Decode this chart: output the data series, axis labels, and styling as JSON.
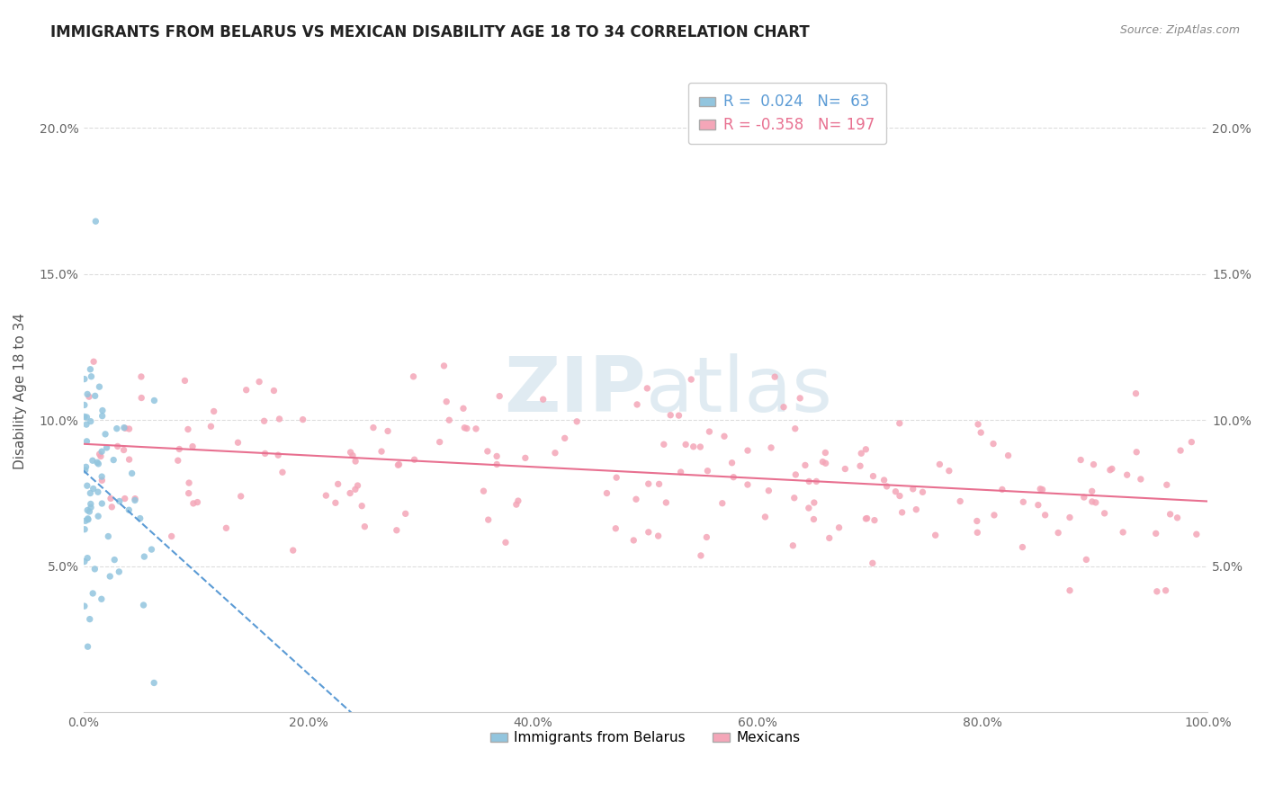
{
  "title": "IMMIGRANTS FROM BELARUS VS MEXICAN DISABILITY AGE 18 TO 34 CORRELATION CHART",
  "source": "Source: ZipAtlas.com",
  "xlabel": "",
  "ylabel": "Disability Age 18 to 34",
  "xlim": [
    0.0,
    1.0
  ],
  "ylim": [
    0.0,
    0.22
  ],
  "yticks": [
    0.05,
    0.1,
    0.15,
    0.2
  ],
  "ytick_labels": [
    "5.0%",
    "10.0%",
    "15.0%",
    "20.0%"
  ],
  "xticks": [
    0.0,
    0.2,
    0.4,
    0.6,
    0.8,
    1.0
  ],
  "xtick_labels": [
    "0.0%",
    "20.0%",
    "40.0%",
    "60.0%",
    "80.0%",
    "100.0%"
  ],
  "legend_r1": "R =  0.024",
  "legend_n1": "N=  63",
  "legend_r2": "R = -0.358",
  "legend_n2": "N= 197",
  "color_blue": "#92c5de",
  "color_pink": "#f4a6b8",
  "color_blue_line": "#5b9bd5",
  "color_pink_line": "#e87090",
  "watermark_zip": "ZIP",
  "watermark_atlas": "atlas",
  "belarus_R": 0.024,
  "belarus_N": 63,
  "mexican_R": -0.358,
  "mexican_N": 197,
  "title_fontsize": 12,
  "axis_label_fontsize": 11,
  "tick_fontsize": 10,
  "background_color": "#ffffff",
  "grid_color": "#dddddd"
}
